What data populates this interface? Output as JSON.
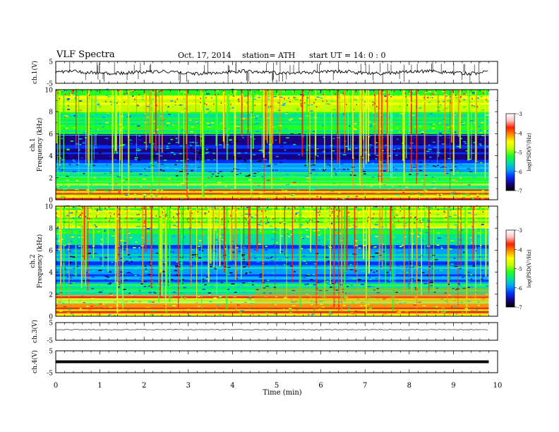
{
  "header": {
    "title": "VLF  Spectra",
    "date": "Oct. 17, 2014",
    "station": "station= ATH",
    "start_ut": "start  UT =   14: 0  : 0"
  },
  "colors": {
    "colorbar": [
      "#000000",
      "#1a0080",
      "#0033ff",
      "#00a0ff",
      "#00e0a0",
      "#20ff20",
      "#c0ff00",
      "#ffff00",
      "#ff9000",
      "#ff2000",
      "#ffc0c0",
      "#ffffff"
    ]
  },
  "chart_data": [
    {
      "type": "line",
      "id": "ch1",
      "ylabel": "ch.1(V)",
      "ylim": [
        -5,
        5
      ],
      "yticks": [
        "5",
        "-5"
      ],
      "baseline": 0.5
    },
    {
      "type": "heatmap",
      "id": "spec1",
      "ylabel": "Frequency  (kHz)",
      "channel": "ch.1",
      "ylim": [
        0,
        10
      ],
      "yticks": [
        "0",
        "2",
        "4",
        "6",
        "8",
        "10"
      ],
      "colorbar": {
        "label": "log(PSD(V²/Hz)",
        "range": [
          -7,
          -3
        ],
        "ticks": [
          "-3",
          "-4",
          "-5",
          "-6",
          "-7"
        ]
      }
    },
    {
      "type": "heatmap",
      "id": "spec2",
      "ylabel": "Frequency  (kHz)",
      "channel": "ch.2",
      "ylim": [
        0,
        10
      ],
      "yticks": [
        "0",
        "2",
        "4",
        "6",
        "8",
        "10"
      ],
      "colorbar": {
        "label": "log(PSD(V²/Hz)",
        "range": [
          -7,
          -3
        ],
        "ticks": [
          "-3",
          "-4",
          "-5",
          "-6",
          "-7"
        ]
      }
    },
    {
      "type": "line",
      "id": "ch3",
      "ylabel": "ch.3(V)",
      "ylim": [
        -5,
        5
      ],
      "yticks": [
        "5",
        "-5"
      ],
      "baseline": 0.4
    },
    {
      "type": "line",
      "id": "ch4",
      "ylabel": "ch.4(V)",
      "ylim": [
        -5,
        5
      ],
      "yticks": [
        "5",
        "-5"
      ],
      "baseline": 0.5
    }
  ],
  "xaxis": {
    "label": "Time  (min)",
    "range": [
      0,
      10
    ],
    "ticks": [
      "0",
      "1",
      "2",
      "3",
      "4",
      "5",
      "6",
      "7",
      "8",
      "9",
      "10"
    ],
    "data_end": 9.8
  }
}
